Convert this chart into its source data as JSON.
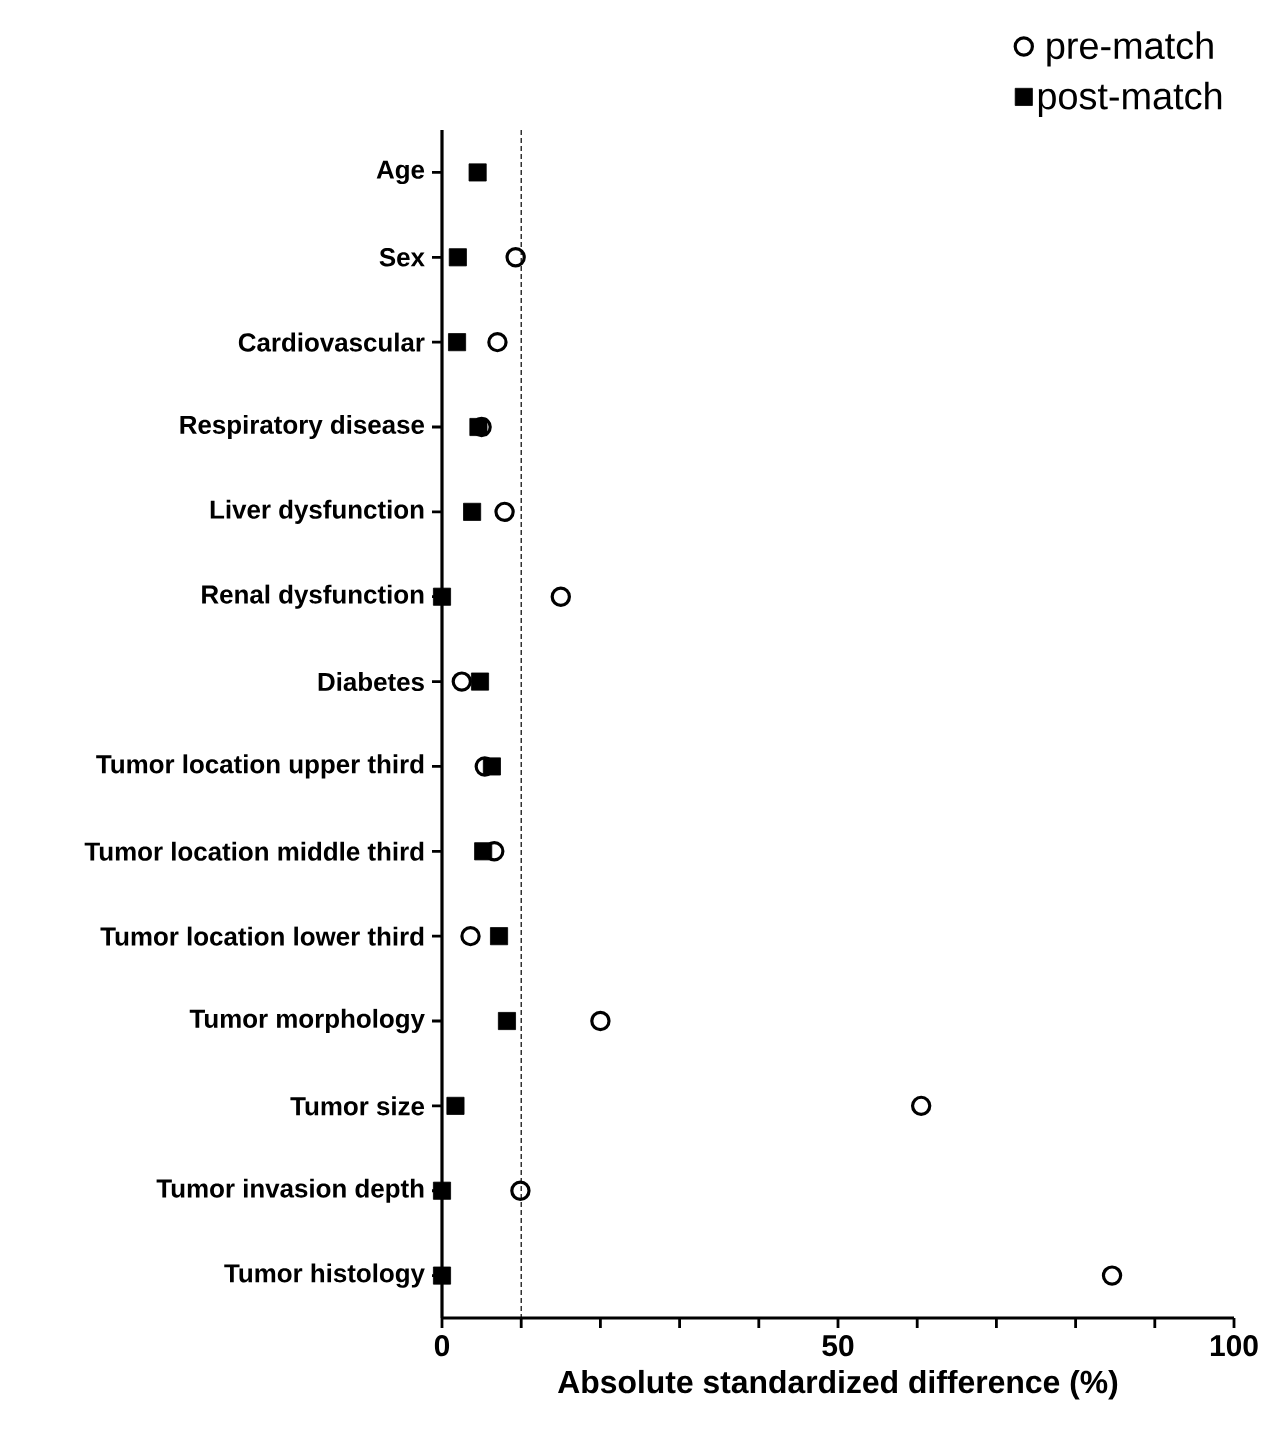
{
  "chart_data": {
    "type": "scatter",
    "categories": [
      "Age",
      "Sex",
      "Cardiovascular",
      "Respiratory disease",
      "Liver dysfunction",
      "Renal dysfunction",
      "Diabetes",
      "Tumor location upper third",
      "Tumor location middle third",
      "Tumor location lower third",
      "Tumor morphology",
      "Tumor size",
      "Tumor invasion depth",
      "Tumor histology"
    ],
    "orientation": "horizontal",
    "xlabel": "Absolute standardized difference (%)",
    "xlim": [
      0,
      100
    ],
    "xticks": [
      0,
      {
        "value": 10,
        "label": null
      },
      {
        "value": 20,
        "label": null
      },
      {
        "value": 30,
        "label": null
      },
      {
        "value": 40,
        "label": null
      },
      50,
      {
        "value": 60,
        "label": null
      },
      {
        "value": 70,
        "label": null
      },
      {
        "value": 80,
        "label": null
      },
      {
        "value": 90,
        "label": null
      },
      100
    ],
    "series": [
      {
        "name": "pre-match",
        "color": "#000000",
        "marker": "circle",
        "values": [
          null,
          9.3,
          7.0,
          5.0,
          7.9,
          15.0,
          2.5,
          5.4,
          6.6,
          3.6,
          20.0,
          60.5,
          9.9,
          84.6
        ]
      },
      {
        "name": "post-match",
        "color": "#000000",
        "marker": "square",
        "values": [
          4.5,
          2.0,
          1.9,
          4.6,
          3.8,
          0,
          4.8,
          6.3,
          5.2,
          7.2,
          8.2,
          1.7,
          0,
          0
        ]
      }
    ],
    "ref_lines": [
      {
        "axis": "x",
        "value": 10,
        "line_style": "dashed"
      }
    ],
    "legend": "top right",
    "grid": false
  }
}
